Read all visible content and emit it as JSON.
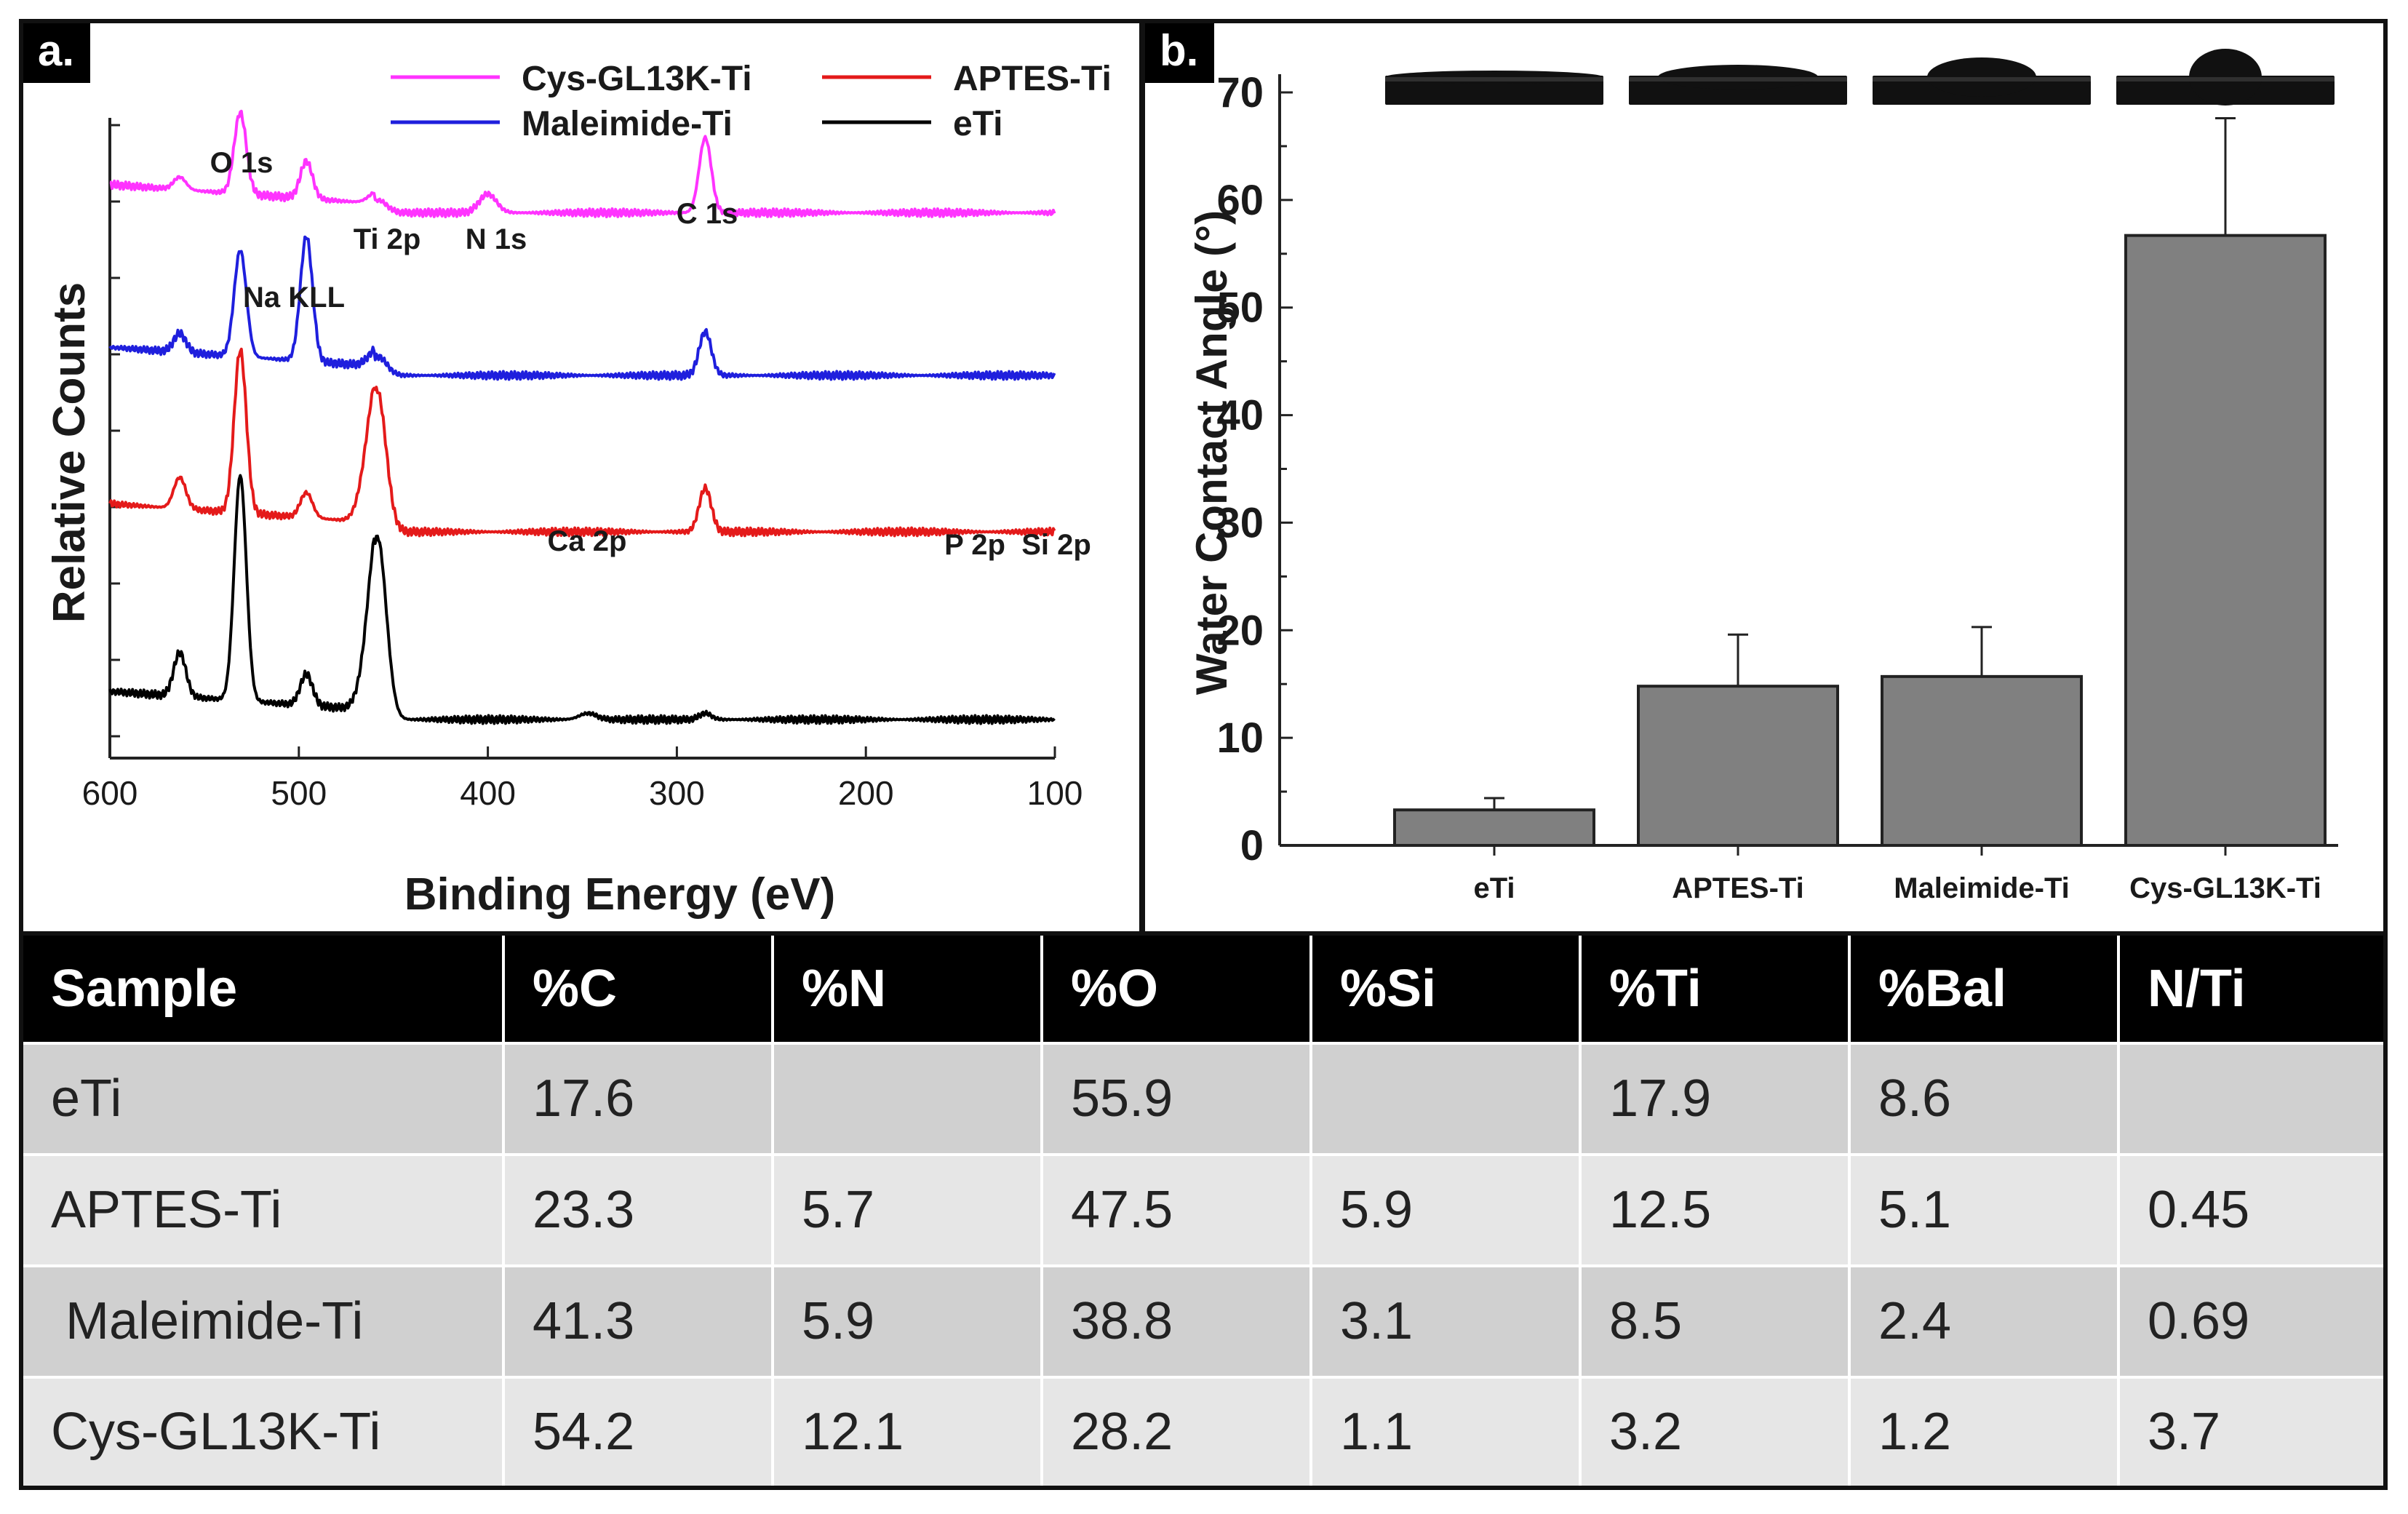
{
  "chart_data": [
    {
      "panel": "a.",
      "type": "line",
      "title": "",
      "xlabel": "Binding Energy (eV)",
      "ylabel": "Relative Counts",
      "xlim": [
        600,
        100
      ],
      "xticks": [
        600,
        500,
        400,
        300,
        200,
        100
      ],
      "legend_position": "top",
      "series": [
        {
          "name": "Cys-GL13K-Ti",
          "color": "#ff33ff",
          "baseline": 0.86,
          "peaks": [
            [
              563,
              0.02
            ],
            [
              531,
              0.13
            ],
            [
              496,
              0.06
            ],
            [
              458,
              0.02
            ],
            [
              400,
              0.03
            ],
            [
              285,
              0.12
            ]
          ]
        },
        {
          "name": "Maleimide-Ti",
          "color": "#1f1fdd",
          "baseline": 0.6,
          "peaks": [
            [
              563,
              0.03
            ],
            [
              531,
              0.17
            ],
            [
              496,
              0.2
            ],
            [
              458,
              0.03
            ],
            [
              285,
              0.07
            ]
          ]
        },
        {
          "name": "APTES-Ti",
          "color": "#e41a1a",
          "baseline": 0.35,
          "peaks": [
            [
              563,
              0.05
            ],
            [
              531,
              0.26
            ],
            [
              496,
              0.04
            ],
            [
              464,
              0.06
            ],
            [
              458,
              0.2
            ],
            [
              285,
              0.07
            ]
          ]
        },
        {
          "name": "eTi",
          "color": "#000000",
          "baseline": 0.05,
          "peaks": [
            [
              563,
              0.07
            ],
            [
              531,
              0.36
            ],
            [
              496,
              0.05
            ],
            [
              464,
              0.05
            ],
            [
              458,
              0.27
            ],
            [
              347,
              0.01
            ],
            [
              285,
              0.01
            ]
          ]
        }
      ],
      "annotations": [
        "O 1s",
        "Na KLL",
        "Ti 2p",
        "N 1s",
        "C 1s",
        "Ca 2p",
        "P 2p",
        "Si 2p"
      ]
    },
    {
      "panel": "b.",
      "type": "bar",
      "title": "",
      "xlabel": "",
      "ylabel": "Water Contact Angle (°)",
      "ylim": [
        0,
        70
      ],
      "yticks": [
        0,
        10,
        20,
        30,
        40,
        50,
        60,
        70
      ],
      "categories": [
        "eTi",
        "APTES-Ti",
        "Maleimide-Ti",
        "Cys-GL13K-Ti"
      ],
      "values": [
        3.3,
        14.8,
        15.7,
        56.7
      ],
      "errors": [
        1.1,
        4.8,
        4.6,
        10.9
      ],
      "bar_color": "#808080"
    }
  ],
  "table": {
    "headers": [
      "Sample",
      "%C",
      "%N",
      "%O",
      "%Si",
      "%Ti",
      "%Bal",
      "N/Ti"
    ],
    "rows": [
      [
        "eTi",
        "17.6",
        "",
        "55.9",
        "",
        "17.9",
        "8.6",
        ""
      ],
      [
        "APTES-Ti",
        "23.3",
        "5.7",
        "47.5",
        "5.9",
        "12.5",
        "5.1",
        "0.45"
      ],
      [
        " Maleimide-Ti",
        "41.3",
        "5.9",
        "38.8",
        "3.1",
        "8.5",
        "2.4",
        "0.69"
      ],
      [
        "Cys-GL13K-Ti",
        "54.2",
        "12.1",
        "28.2",
        "1.1",
        "3.2",
        "1.2",
        "3.7"
      ]
    ]
  }
}
